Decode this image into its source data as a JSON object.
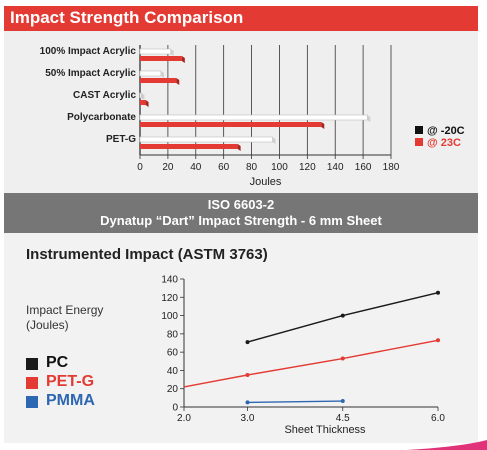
{
  "header": {
    "title": "Impact Strength Comparison"
  },
  "banner": {
    "line1": "ISO 6603-2",
    "line2": "Dynatup “Dart” Impact Strength - 6 mm Sheet"
  },
  "section2": {
    "title": "Instrumented Impact (ASTM 3763)",
    "ylabel_line1": "Impact Energy",
    "ylabel_line2": "(Joules)"
  },
  "colors": {
    "red": "#e33b33",
    "black": "#1a1a1a",
    "blue": "#2e67b1",
    "banner": "#767676"
  },
  "chart_data": [
    {
      "type": "bar",
      "orientation": "horizontal",
      "title": "Impact Strength Comparison",
      "categories": [
        "100% Impact Acrylic",
        "50% Impact Acrylic",
        "CAST Acrylic",
        "Polycarbonate",
        "PET-G"
      ],
      "series": [
        {
          "name": "@ -20C",
          "values": [
            22,
            15,
            1,
            163,
            95
          ],
          "color": "#ffffff"
        },
        {
          "name": "@ 23C",
          "values": [
            30,
            26,
            4,
            130,
            70
          ],
          "color": "#e33b33"
        }
      ],
      "xlabel": "Joules",
      "xlim": [
        0,
        180
      ],
      "xticks": [
        0,
        20,
        40,
        60,
        80,
        100,
        120,
        140,
        160,
        180
      ],
      "grid": true,
      "legend_position": "right"
    },
    {
      "type": "line",
      "title": "Instrumented Impact (ASTM 3763)",
      "xlabel": "Sheet Thickness",
      "ylabel": "Impact Energy (Joules)",
      "xlim": [
        2.0,
        6.0
      ],
      "ylim": [
        0,
        140
      ],
      "xticks": [
        "2.0",
        "3.0",
        "4.5",
        "6.0"
      ],
      "yticks": [
        0,
        20,
        40,
        60,
        80,
        100,
        120,
        140
      ],
      "series": [
        {
          "name": "PC",
          "color": "#1a1a1a",
          "points": [
            [
              3.0,
              71
            ],
            [
              4.5,
              100
            ],
            [
              6.0,
              125
            ]
          ]
        },
        {
          "name": "PET-G",
          "color": "#e33b33",
          "points": [
            [
              2.0,
              22
            ],
            [
              3.0,
              35
            ],
            [
              4.5,
              53
            ],
            [
              6.0,
              73
            ]
          ]
        },
        {
          "name": "PMMA",
          "color": "#2e67b1",
          "points": [
            [
              3.0,
              5
            ],
            [
              4.5,
              6.5
            ]
          ]
        }
      ],
      "grid": false,
      "legend_position": "left"
    }
  ]
}
